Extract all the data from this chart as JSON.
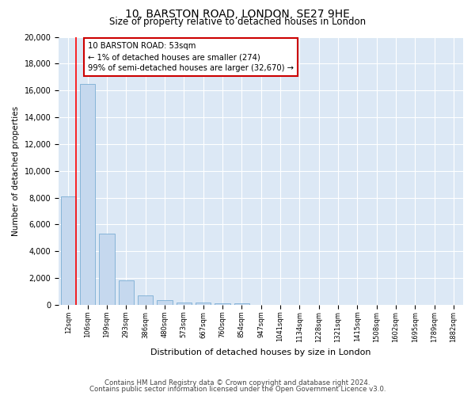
{
  "title": "10, BARSTON ROAD, LONDON, SE27 9HE",
  "subtitle": "Size of property relative to detached houses in London",
  "xlabel": "Distribution of detached houses by size in London",
  "ylabel": "Number of detached properties",
  "bar_color": "#c5d8ee",
  "bar_edge_color": "#7badd4",
  "background_color": "#dce8f5",
  "grid_color": "#ffffff",
  "categories": [
    "12sqm",
    "106sqm",
    "199sqm",
    "293sqm",
    "386sqm",
    "480sqm",
    "573sqm",
    "667sqm",
    "760sqm",
    "854sqm",
    "947sqm",
    "1041sqm",
    "1134sqm",
    "1228sqm",
    "1321sqm",
    "1415sqm",
    "1508sqm",
    "1602sqm",
    "1695sqm",
    "1789sqm",
    "1882sqm"
  ],
  "values": [
    8100,
    16500,
    5300,
    1800,
    680,
    340,
    200,
    160,
    130,
    110,
    0,
    0,
    0,
    0,
    0,
    0,
    0,
    0,
    0,
    0,
    0
  ],
  "ylim": [
    0,
    20000
  ],
  "yticks": [
    0,
    2000,
    4000,
    6000,
    8000,
    10000,
    12000,
    14000,
    16000,
    18000,
    20000
  ],
  "annotation_text": "10 BARSTON ROAD: 53sqm\n← 1% of detached houses are smaller (274)\n99% of semi-detached houses are larger (32,670) →",
  "annotation_box_color": "#ffffff",
  "annotation_box_edge_color": "#cc0000",
  "footer_line1": "Contains HM Land Registry data © Crown copyright and database right 2024.",
  "footer_line2": "Contains public sector information licensed under the Open Government Licence v3.0."
}
